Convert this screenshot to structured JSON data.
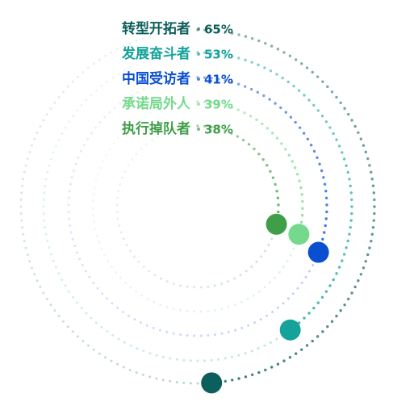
{
  "chart_data": {
    "type": "radial-bar",
    "series": [
      {
        "name": "转型开拓者",
        "value": 65,
        "display": "65%",
        "color": "#0c5f5c"
      },
      {
        "name": "发展奋斗者",
        "value": 53,
        "display": "53%",
        "color": "#14a29a"
      },
      {
        "name": "中国受访者",
        "value": 41,
        "display": "41%",
        "color": "#0b4fd1"
      },
      {
        "name": "承诺局外人",
        "value": 39,
        "display": "39%",
        "color": "#74d98c"
      },
      {
        "name": "执行掉队者",
        "value": 38,
        "display": "38%",
        "color": "#3f9e48"
      }
    ],
    "ylim": [
      0,
      100
    ],
    "legend": "top-left",
    "grid": false
  }
}
